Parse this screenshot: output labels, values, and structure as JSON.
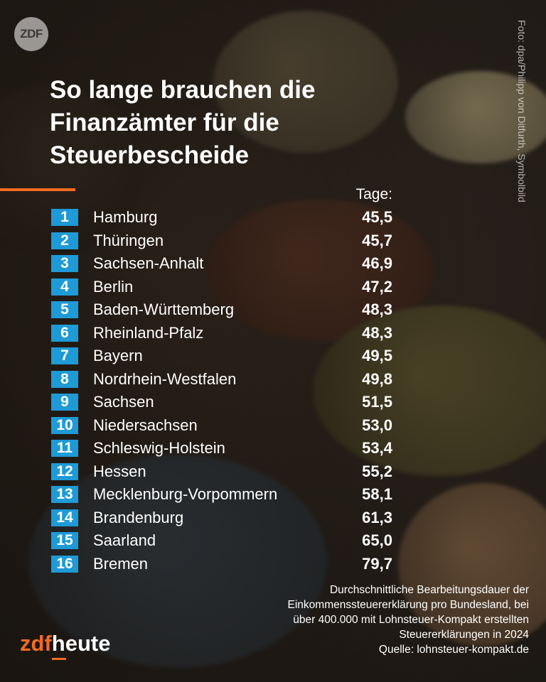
{
  "header": {
    "logo_text": "ZDF",
    "photo_credit": "Foto: dpa/Philipp von Ditfurth, Symbolbild"
  },
  "title": "So lange brauchen die Finanzämter für die Steuerbescheide",
  "table": {
    "column_label": "Tage:",
    "rows": [
      {
        "rank": "1",
        "state": "Hamburg",
        "value": "45,5"
      },
      {
        "rank": "2",
        "state": "Thüringen",
        "value": "45,7"
      },
      {
        "rank": "3",
        "state": "Sachsen-Anhalt",
        "value": "46,9"
      },
      {
        "rank": "4",
        "state": "Berlin",
        "value": "47,2"
      },
      {
        "rank": "5",
        "state": "Baden-Württemberg",
        "value": "48,3"
      },
      {
        "rank": "6",
        "state": "Rheinland-Pfalz",
        "value": "48,3"
      },
      {
        "rank": "7",
        "state": "Bayern",
        "value": "49,5"
      },
      {
        "rank": "8",
        "state": "Nordrhein-Westfalen",
        "value": "49,8"
      },
      {
        "rank": "9",
        "state": "Sachsen",
        "value": "51,5"
      },
      {
        "rank": "10",
        "state": "Niedersachsen",
        "value": "53,0"
      },
      {
        "rank": "11",
        "state": "Schleswig-Holstein",
        "value": "53,4"
      },
      {
        "rank": "12",
        "state": "Hessen",
        "value": "55,2"
      },
      {
        "rank": "13",
        "state": "Mecklenburg-Vorpommern",
        "value": "58,1"
      },
      {
        "rank": "14",
        "state": "Brandenburg",
        "value": "61,3"
      },
      {
        "rank": "15",
        "state": "Saarland",
        "value": "65,0"
      },
      {
        "rank": "16",
        "state": "Bremen",
        "value": "79,7"
      }
    ]
  },
  "footnote": {
    "lines": [
      "Durchschnittliche Bearbeitungsdauer der",
      "Einkommenssteuererklärung pro Bundesland, bei",
      "über 400.000 mit Lohnsteuer-Kompakt erstellten",
      "Steuererklärungen in 2024"
    ],
    "source": "Quelle: lohnsteuer-kompakt.de"
  },
  "brand": {
    "part1": "zdf",
    "part2": "heute"
  },
  "colors": {
    "accent_orange": "#f26b21",
    "rank_blue": "#1e9ad6"
  }
}
